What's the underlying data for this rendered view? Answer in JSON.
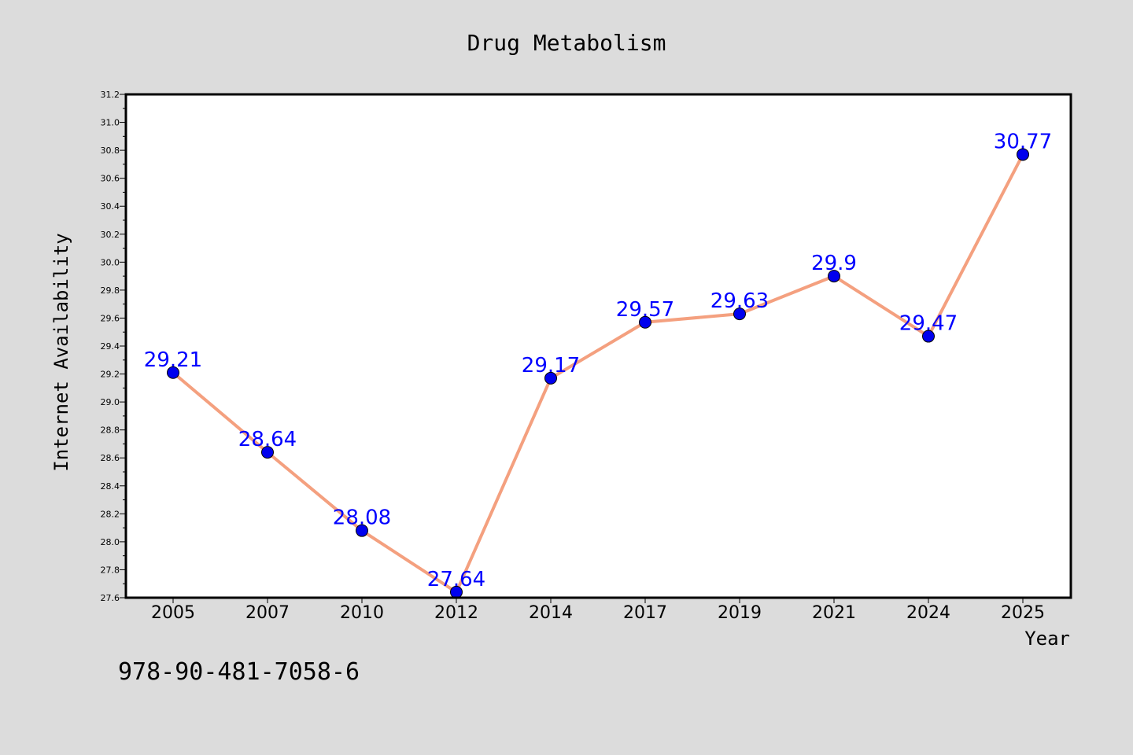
{
  "chart_data": {
    "type": "line",
    "title": "Drug Metabolism",
    "xlabel": "Year",
    "ylabel": "Internet Availability",
    "categories": [
      "2005",
      "2007",
      "2010",
      "2012",
      "2014",
      "2017",
      "2019",
      "2021",
      "2024",
      "2025"
    ],
    "values": [
      29.21,
      28.64,
      28.08,
      27.64,
      29.17,
      29.57,
      29.63,
      29.9,
      29.47,
      30.77
    ],
    "data_labels": [
      "29.21",
      "28.64",
      "28.08",
      "27.64",
      "29.17",
      "29.57",
      "29.63",
      "29.9",
      "29.47",
      "30.77"
    ],
    "ylim": [
      27.6,
      31.2
    ],
    "yticks": [
      "27.6",
      "27.8",
      "28.0",
      "28.2",
      "28.4",
      "28.6",
      "28.8",
      "29.0",
      "29.2",
      "29.4",
      "29.6",
      "29.8",
      "30.0",
      "30.2",
      "30.4",
      "30.6",
      "30.8",
      "31.0",
      "31.2"
    ],
    "grid": false,
    "line_color": "#f4a07f",
    "marker_color": "#0000ee",
    "label_color": "#0000ff",
    "background_color": "#dcdcdc",
    "plot_background_color": "#ffffff"
  },
  "footer": {
    "isbn": "978-90-481-7058-6"
  }
}
